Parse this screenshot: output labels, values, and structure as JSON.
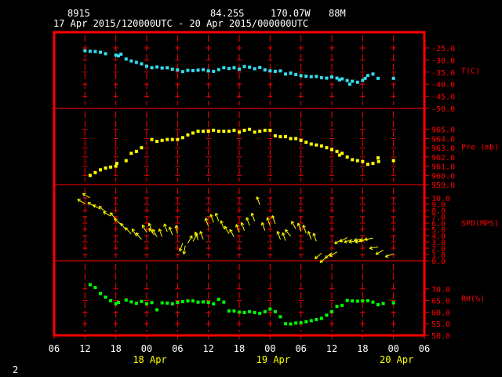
{
  "header": {
    "station": "8915",
    "lat": "84.25S",
    "lon": "170.07W",
    "elev": "88M",
    "period": "17 Apr 2015/120000UTC - 20 Apr 2015/000000UTC",
    "page_number": "2"
  },
  "colors": {
    "background": "#000000",
    "frame": "#ff0000",
    "temperature": "#33ddee",
    "pressure": "#ffff00",
    "wind": "#ffff00",
    "rh": "#00ff00",
    "labels": "#ff0000",
    "date_labels": "#ffff00",
    "text": "#ffffff"
  },
  "chart_data": {
    "type": "scatter",
    "x_unit": "hours since 17 Apr 2015 00 UTC",
    "x_range": [
      6,
      78
    ],
    "x_ticks": [
      {
        "h": 6,
        "label": "06"
      },
      {
        "h": 12,
        "label": "12"
      },
      {
        "h": 18,
        "label": "18"
      },
      {
        "h": 24,
        "label": "00"
      },
      {
        "h": 30,
        "label": "06"
      },
      {
        "h": 36,
        "label": "12"
      },
      {
        "h": 42,
        "label": "18"
      },
      {
        "h": 48,
        "label": "00"
      },
      {
        "h": 54,
        "label": "06"
      },
      {
        "h": 60,
        "label": "12"
      },
      {
        "h": 66,
        "label": "18"
      },
      {
        "h": 72,
        "label": "00"
      },
      {
        "h": 78,
        "label": "06"
      }
    ],
    "date_labels": [
      {
        "h": 24,
        "label": "18 Apr"
      },
      {
        "h": 48,
        "label": "19 Apr"
      },
      {
        "h": 72,
        "label": "20 Apr"
      }
    ],
    "panels": [
      {
        "key": "temperature",
        "label": "T(C)",
        "range": [
          -50,
          -25
        ],
        "ticks": [
          "-25.0",
          "-30.0",
          "-35.0",
          "-40.0",
          "-45.0",
          "-50.0"
        ],
        "tick_values": [
          -25,
          -30,
          -35,
          -40,
          -45,
          -50
        ],
        "points": [
          [
            12,
            -26.2
          ],
          [
            13,
            -26.4
          ],
          [
            14,
            -26.5
          ],
          [
            15,
            -26.8
          ],
          [
            16,
            -27.4
          ],
          [
            18,
            -28
          ],
          [
            18.5,
            -28.3
          ],
          [
            19,
            -27.6
          ],
          [
            20,
            -29.6
          ],
          [
            21,
            -30.4
          ],
          [
            22,
            -31
          ],
          [
            23,
            -31.6
          ],
          [
            24,
            -32.6
          ],
          [
            25,
            -33.2
          ],
          [
            26,
            -32.9
          ],
          [
            27,
            -33.3
          ],
          [
            28,
            -33.2
          ],
          [
            29,
            -33.8
          ],
          [
            30,
            -34.1
          ],
          [
            31,
            -34.8
          ],
          [
            32,
            -34.3
          ],
          [
            33,
            -34.4
          ],
          [
            34,
            -34.2
          ],
          [
            35,
            -34
          ],
          [
            36,
            -34.5
          ],
          [
            37,
            -34.7
          ],
          [
            38,
            -34
          ],
          [
            39,
            -33.2
          ],
          [
            40,
            -33.5
          ],
          [
            41,
            -33.2
          ],
          [
            42,
            -33.8
          ],
          [
            43,
            -32.7
          ],
          [
            44,
            -33
          ],
          [
            45,
            -33.6
          ],
          [
            46,
            -33.1
          ],
          [
            47,
            -34.1
          ],
          [
            48,
            -34.5
          ],
          [
            49,
            -34.7
          ],
          [
            50,
            -34.5
          ],
          [
            51,
            -35.8
          ],
          [
            52,
            -35.4
          ],
          [
            53,
            -36
          ],
          [
            54,
            -36.5
          ],
          [
            55,
            -36.7
          ],
          [
            56,
            -36.9
          ],
          [
            57,
            -36.8
          ],
          [
            58,
            -37.3
          ],
          [
            59,
            -37.5
          ],
          [
            60,
            -37
          ],
          [
            61,
            -37.5
          ],
          [
            61.5,
            -38.2
          ],
          [
            62,
            -37.8
          ],
          [
            63,
            -38.5
          ],
          [
            63.5,
            -40
          ],
          [
            64,
            -38.8
          ],
          [
            65,
            -39.2
          ],
          [
            66,
            -38.4
          ],
          [
            66.5,
            -37.6
          ],
          [
            67,
            -36.4
          ],
          [
            68,
            -35.8
          ],
          [
            69,
            -37.6
          ],
          [
            72,
            -37.6
          ]
        ]
      },
      {
        "key": "pressure",
        "label": "Pre (mb)",
        "range": [
          959,
          966
        ],
        "ticks": [
          "965.0",
          "964.0",
          "963.0",
          "962.0",
          "961.0",
          "960.0",
          "959.0"
        ],
        "tick_values": [
          965,
          964,
          963,
          962,
          961,
          960,
          959
        ],
        "points": [
          [
            13,
            960
          ],
          [
            14,
            960.3
          ],
          [
            15,
            960.6
          ],
          [
            16,
            960.8
          ],
          [
            17,
            960.9
          ],
          [
            18,
            961
          ],
          [
            18.2,
            961.3
          ],
          [
            20,
            961.6
          ],
          [
            21,
            962.4
          ],
          [
            22,
            962.6
          ],
          [
            23,
            963
          ],
          [
            25,
            963.9
          ],
          [
            26,
            963.7
          ],
          [
            27,
            963.8
          ],
          [
            28,
            963.9
          ],
          [
            29,
            963.9
          ],
          [
            30,
            963.9
          ],
          [
            31,
            964.1
          ],
          [
            32,
            964.4
          ],
          [
            33,
            964.6
          ],
          [
            34,
            964.8
          ],
          [
            35,
            964.8
          ],
          [
            36,
            964.8
          ],
          [
            37,
            964.9
          ],
          [
            38,
            964.8
          ],
          [
            39,
            964.8
          ],
          [
            40,
            964.8
          ],
          [
            41,
            964.9
          ],
          [
            42,
            964.7
          ],
          [
            43,
            964.9
          ],
          [
            44,
            965
          ],
          [
            45,
            964.7
          ],
          [
            46,
            964.8
          ],
          [
            47,
            964.9
          ],
          [
            48,
            964.9
          ],
          [
            49,
            964.3
          ],
          [
            50,
            964.2
          ],
          [
            51,
            964.2
          ],
          [
            52,
            964
          ],
          [
            53,
            964
          ],
          [
            54,
            963.8
          ],
          [
            55,
            963.6
          ],
          [
            56,
            963.4
          ],
          [
            57,
            963.3
          ],
          [
            58,
            963.2
          ],
          [
            59,
            963
          ],
          [
            60,
            962.8
          ],
          [
            61,
            962.6
          ],
          [
            61.5,
            962.2
          ],
          [
            62,
            962.4
          ],
          [
            63,
            962
          ],
          [
            64,
            961.7
          ],
          [
            65,
            961.6
          ],
          [
            66,
            961.5
          ],
          [
            67,
            961.2
          ],
          [
            68,
            961.3
          ],
          [
            69,
            961.9
          ],
          [
            69.1,
            961.5
          ],
          [
            72,
            961.6
          ]
        ]
      },
      {
        "key": "wind",
        "label": "SPD(MPS)",
        "range": [
          0,
          11
        ],
        "ticks": [
          "10.0",
          "9.0",
          "8.0",
          "7.0",
          "6.0",
          "5.0",
          "4.0",
          "3.0",
          "2.0",
          "1.0",
          "0.0"
        ],
        "tick_values": [
          10,
          9,
          8,
          7,
          6,
          5,
          4,
          3,
          2,
          1,
          0
        ],
        "points": [
          [
            12,
            9.1,
            300
          ],
          [
            13,
            10,
            300
          ],
          [
            14,
            8.6,
            300
          ],
          [
            15,
            8.2,
            300
          ],
          [
            16,
            7.8,
            310
          ],
          [
            17,
            7.1,
            300
          ],
          [
            18,
            6.6,
            320
          ],
          [
            19,
            5.8,
            310
          ],
          [
            20,
            4.9,
            320
          ],
          [
            21,
            4.3,
            315
          ],
          [
            22,
            3.9,
            330
          ],
          [
            23,
            3.4,
            320
          ],
          [
            24,
            4.5,
            330
          ],
          [
            25,
            4.7,
            340
          ],
          [
            25.5,
            4.1,
            320
          ],
          [
            26,
            3.8,
            330
          ],
          [
            27,
            3.8,
            340
          ],
          [
            28,
            4.6,
            340
          ],
          [
            29,
            4.1,
            340
          ],
          [
            30,
            4.3,
            350
          ],
          [
            31,
            2.8,
            200
          ],
          [
            31.5,
            2.4,
            190
          ],
          [
            32,
            2.8,
            30
          ],
          [
            33,
            3.1,
            30
          ],
          [
            34,
            3.3,
            340
          ],
          [
            35,
            3.4,
            340
          ],
          [
            36,
            5.5,
            340
          ],
          [
            37,
            6.1,
            340
          ],
          [
            38,
            6.3,
            340
          ],
          [
            39,
            5.1,
            340
          ],
          [
            40,
            4.3,
            330
          ],
          [
            41,
            3.8,
            330
          ],
          [
            42,
            4.5,
            340
          ],
          [
            43,
            4.8,
            340
          ],
          [
            44,
            5.6,
            340
          ],
          [
            45,
            6.3,
            340
          ],
          [
            46,
            8.9,
            340
          ],
          [
            47,
            4.8,
            340
          ],
          [
            48,
            5.6,
            340
          ],
          [
            49,
            5.9,
            340
          ],
          [
            50,
            3.4,
            340
          ],
          [
            51,
            3.2,
            340
          ],
          [
            52,
            3.9,
            320
          ],
          [
            53,
            5.1,
            330
          ],
          [
            54,
            4.7,
            340
          ],
          [
            55,
            4.4,
            340
          ],
          [
            56,
            3.4,
            340
          ],
          [
            57,
            3.1,
            340
          ],
          [
            58,
            1.2,
            230
          ],
          [
            59,
            0.6,
            230
          ],
          [
            60,
            1.3,
            230
          ],
          [
            61,
            1.4,
            240
          ],
          [
            62,
            3.4,
            240
          ],
          [
            63,
            3.7,
            240
          ],
          [
            64,
            3.4,
            250
          ],
          [
            65,
            3.2,
            260
          ],
          [
            66,
            3.5,
            260
          ],
          [
            66.2,
            3.2,
            260
          ],
          [
            67,
            3.4,
            260
          ],
          [
            68,
            3.6,
            260
          ],
          [
            69,
            2.2,
            260
          ],
          [
            70,
            1.7,
            240
          ],
          [
            72,
            1.1,
            250
          ]
        ]
      },
      {
        "key": "rh",
        "label": "RH(%)",
        "range": [
          50,
          75
        ],
        "ticks": [
          "70.0",
          "65.0",
          "60.0",
          "55.0",
          "50.0"
        ],
        "tick_values": [
          70,
          65,
          60,
          55,
          50
        ],
        "points": [
          [
            13,
            71.8
          ],
          [
            14,
            70.6
          ],
          [
            15,
            68
          ],
          [
            16,
            66.4
          ],
          [
            17,
            64.9
          ],
          [
            18,
            63.6
          ],
          [
            18.5,
            64.2
          ],
          [
            20,
            65.2
          ],
          [
            21,
            64.4
          ],
          [
            22,
            63.8
          ],
          [
            23,
            64.6
          ],
          [
            24,
            63.6
          ],
          [
            25,
            64.1
          ],
          [
            26,
            61
          ],
          [
            27,
            64
          ],
          [
            28,
            63.9
          ],
          [
            29,
            63.6
          ],
          [
            30,
            64.2
          ],
          [
            31,
            64.5
          ],
          [
            32,
            64.8
          ],
          [
            33,
            64.8
          ],
          [
            34,
            64.3
          ],
          [
            35,
            64.4
          ],
          [
            36,
            64.2
          ],
          [
            37,
            63.6
          ],
          [
            38,
            65.5
          ],
          [
            39,
            64.3
          ],
          [
            40,
            60.5
          ],
          [
            41,
            60.5
          ],
          [
            42,
            60
          ],
          [
            43,
            59.8
          ],
          [
            44,
            60.2
          ],
          [
            45,
            59.8
          ],
          [
            46,
            59.5
          ],
          [
            47,
            60.2
          ],
          [
            48,
            61.3
          ],
          [
            49,
            60.2
          ],
          [
            50,
            58
          ],
          [
            51,
            55
          ],
          [
            52,
            54.9
          ],
          [
            53,
            55.3
          ],
          [
            54,
            55.4
          ],
          [
            55,
            55.9
          ],
          [
            56,
            56.3
          ],
          [
            57,
            56.8
          ],
          [
            58,
            57.3
          ],
          [
            59,
            58.7
          ],
          [
            60,
            60.2
          ],
          [
            61,
            62.5
          ],
          [
            62,
            62.9
          ],
          [
            63,
            65
          ],
          [
            64,
            64.8
          ],
          [
            65,
            64.7
          ],
          [
            66,
            64.8
          ],
          [
            67,
            64.9
          ],
          [
            68,
            64.3
          ],
          [
            69,
            63.2
          ],
          [
            70,
            63.7
          ],
          [
            72,
            64
          ]
        ]
      }
    ]
  }
}
